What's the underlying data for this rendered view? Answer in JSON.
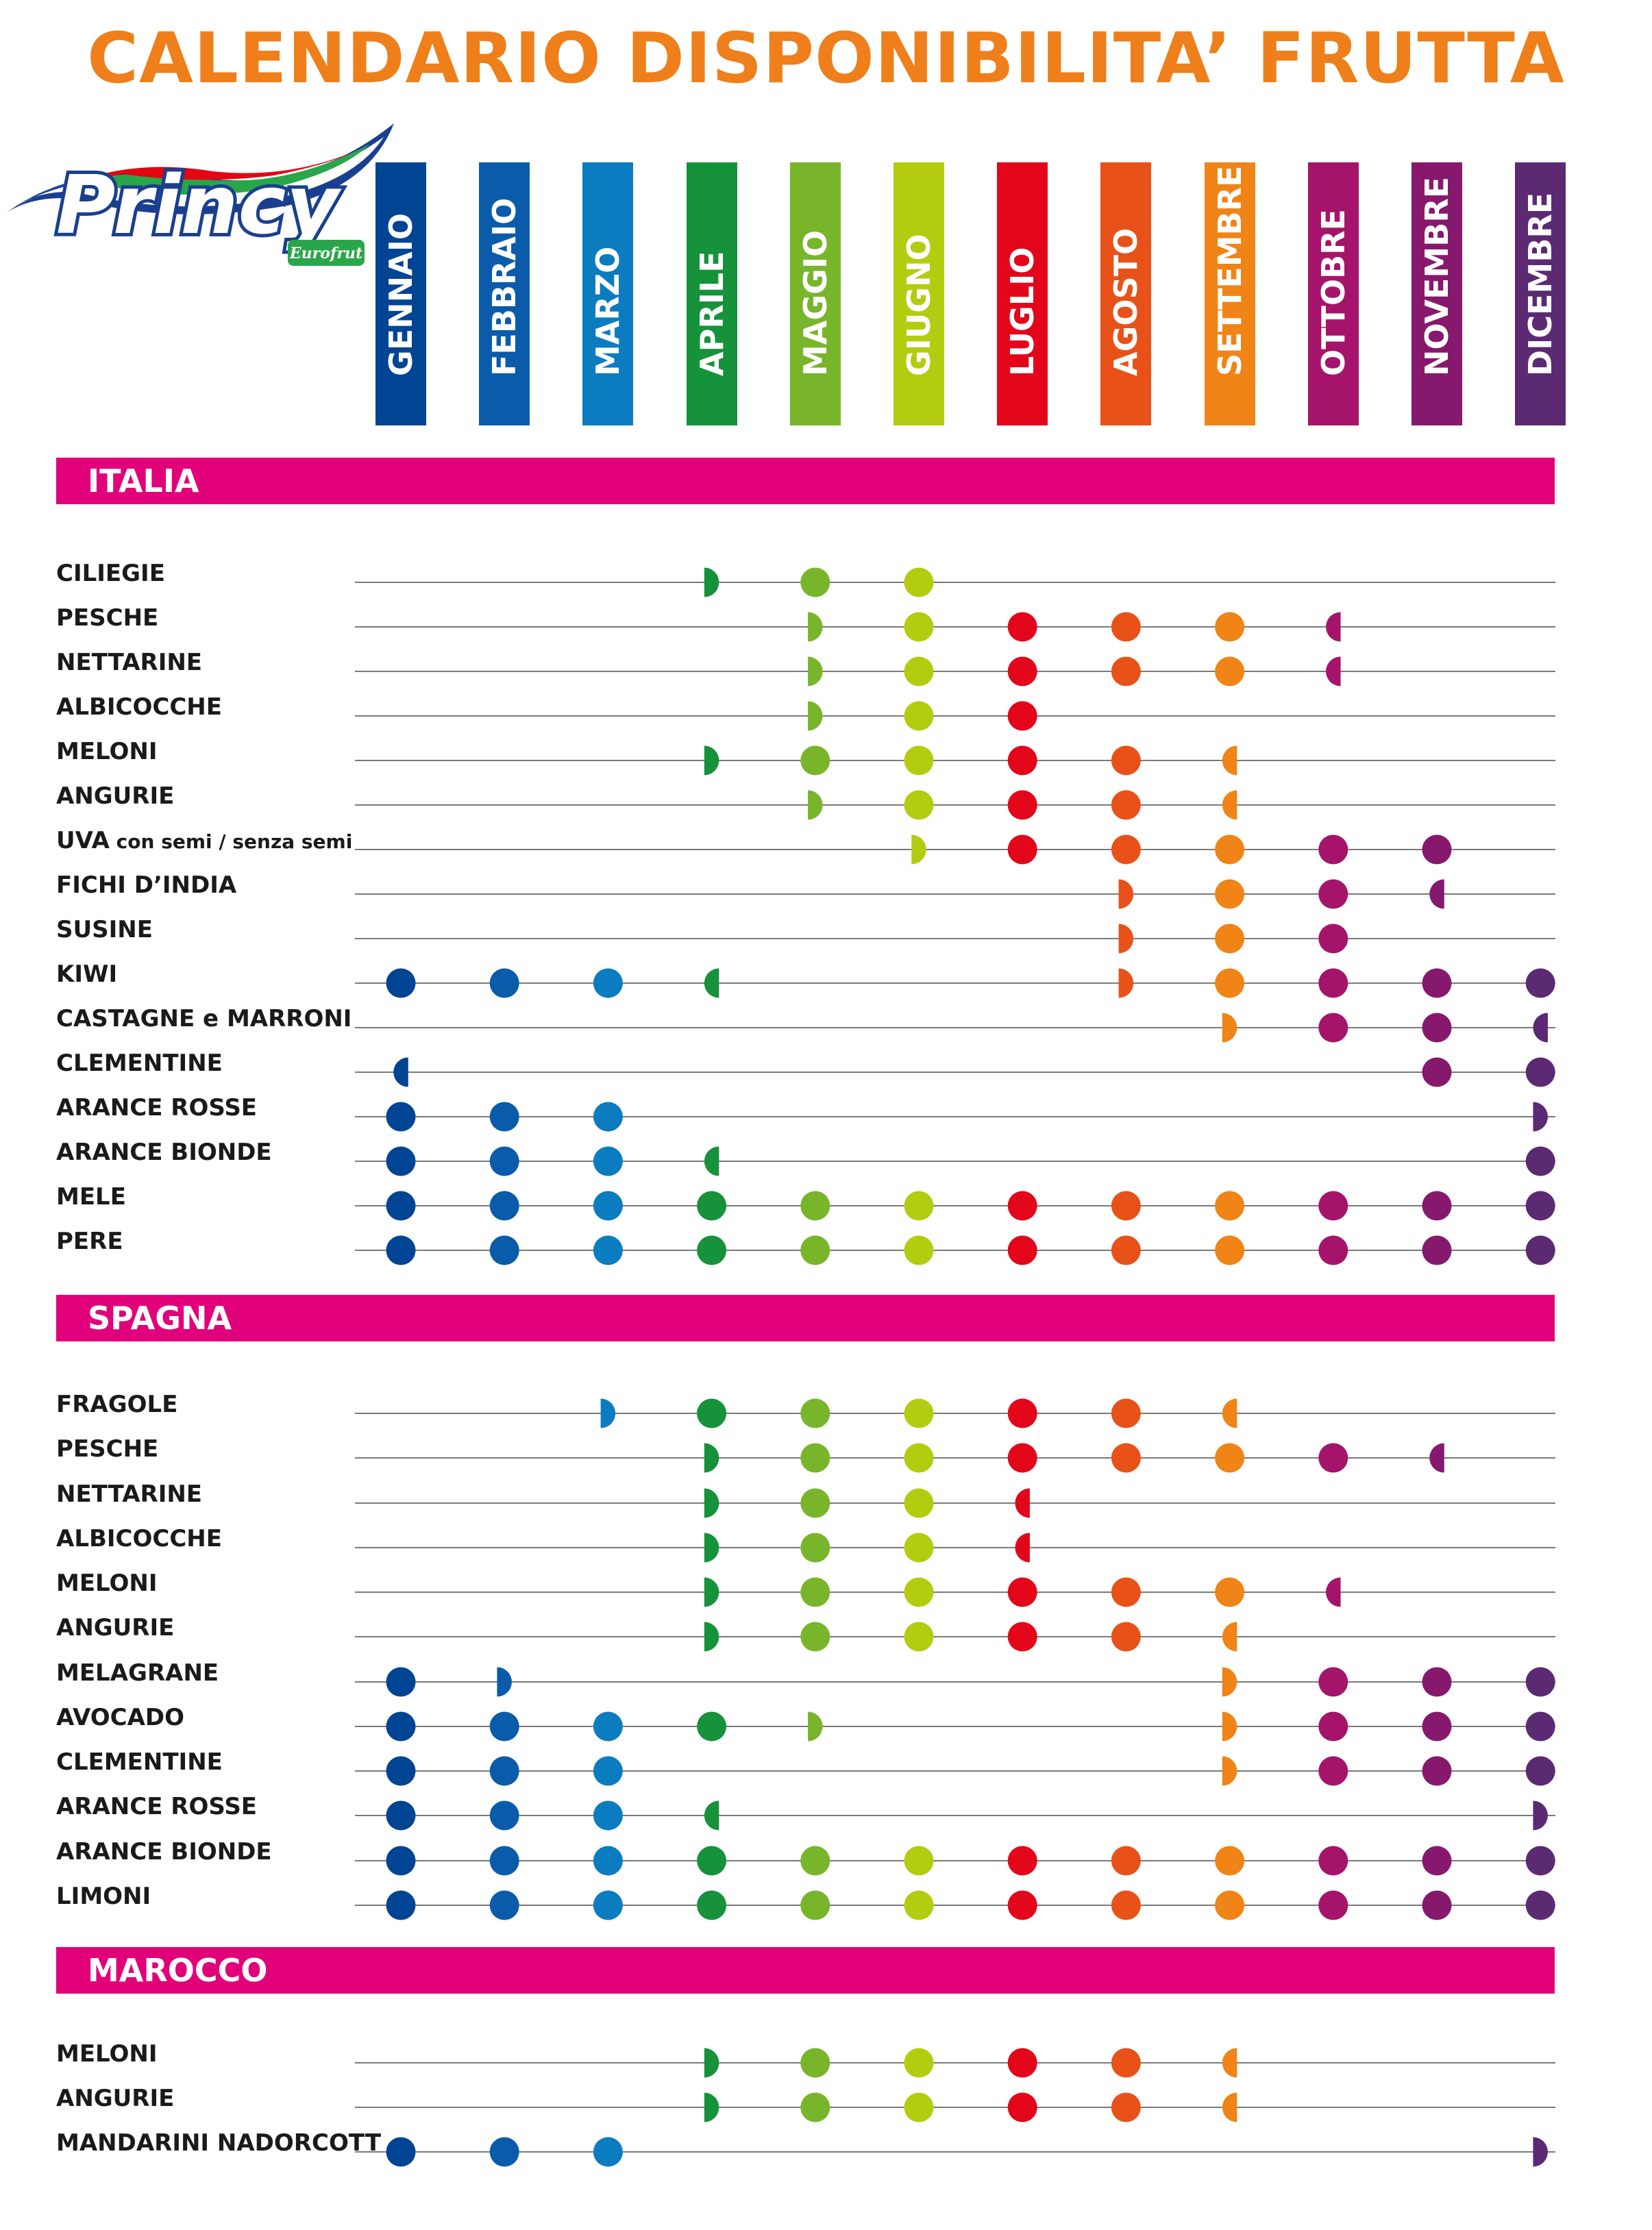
{
  "title": "CALENDARIO DISPONIBILITA’ FRUTTA",
  "logo": {
    "brand": "Princy",
    "sub_brand": "Eurofrut"
  },
  "months": [
    {
      "label": "GENNAIO",
      "color": "#004494"
    },
    {
      "label": "FEBBRAIO",
      "color": "#0a5cab"
    },
    {
      "label": "MARZO",
      "color": "#0b7cc0"
    },
    {
      "label": "APRILE",
      "color": "#16923a"
    },
    {
      "label": "MAGGIO",
      "color": "#78b52b"
    },
    {
      "label": "GIUGNO",
      "color": "#b4cc0f"
    },
    {
      "label": "LUGLIO",
      "color": "#e3061b"
    },
    {
      "label": "AGOSTO",
      "color": "#e85219"
    },
    {
      "label": "SETTEMBRE",
      "color": "#f08416"
    },
    {
      "label": "OTTOBRE",
      "color": "#a5146a"
    },
    {
      "label": "NOVEMBRE",
      "color": "#86196e"
    },
    {
      "label": "DICEMBRE",
      "color": "#5b2a73"
    }
  ],
  "legend_note": "F = full availability, R = right half (start of season), L = left half (end of season)",
  "sections": [
    {
      "name": "ITALIA",
      "rows": [
        {
          "label": "CILIEGIE",
          "marks": "...RFF......"
        },
        {
          "label": "PESCHE",
          "marks": "....RFFFFL.."
        },
        {
          "label": "NETTARINE",
          "marks": "....RFFFFL.."
        },
        {
          "label": "ALBICOCCHE",
          "marks": "....RFF....."
        },
        {
          "label": "MELONI",
          "marks": "...RFFFFL..."
        },
        {
          "label": "ANGURIE",
          "marks": "....RFFFL..."
        },
        {
          "label": "UVA",
          "note": "con semi / senza semi",
          "marks": ".....RFFFFF."
        },
        {
          "label": "FICHI D’INDIA",
          "marks": ".......RFFL."
        },
        {
          "label": "SUSINE",
          "marks": ".......RFF.."
        },
        {
          "label": "KIWI",
          "marks": "FFFL...RFFFF"
        },
        {
          "label": "CASTAGNE e MARRONI",
          "marks": "........RFFL"
        },
        {
          "label": "CLEMENTINE",
          "marks": "L.........FF"
        },
        {
          "label": "ARANCE ROSSE",
          "marks": "FFF........R"
        },
        {
          "label": "ARANCE BIONDE",
          "marks": "FFFL.......F"
        },
        {
          "label": "MELE",
          "marks": "FFFFFFFFFFFF"
        },
        {
          "label": "PERE",
          "marks": "FFFFFFFFFFFF"
        }
      ]
    },
    {
      "name": "SPAGNA",
      "rows": [
        {
          "label": "FRAGOLE",
          "marks": "..RFFFFFL..."
        },
        {
          "label": "PESCHE",
          "marks": "...RFFFFFFL."
        },
        {
          "label": "NETTARINE",
          "marks": "...RFFL....."
        },
        {
          "label": "ALBICOCCHE",
          "marks": "...RFFL....."
        },
        {
          "label": "MELONI",
          "marks": "...RFFFFFL.."
        },
        {
          "label": "ANGURIE",
          "marks": "...RFFFFL..."
        },
        {
          "label": "MELAGRANE",
          "marks": "FR......RFFF"
        },
        {
          "label": "AVOCADO",
          "marks": "FFFFR...RFFF"
        },
        {
          "label": "CLEMENTINE",
          "marks": "FFF.....RFFF"
        },
        {
          "label": "ARANCE ROSSE",
          "marks": "FFFL.......R"
        },
        {
          "label": "ARANCE BIONDE",
          "marks": "FFFFFFFFFFFF"
        },
        {
          "label": "LIMONI",
          "marks": "FFFFFFFFFFFF"
        }
      ]
    },
    {
      "name": "MAROCCO",
      "rows": [
        {
          "label": "MELONI",
          "marks": "...RFFFFL..."
        },
        {
          "label": "ANGURIE",
          "marks": "...RFFFFL..."
        },
        {
          "label": "MANDARINI NADORCOTT",
          "marks": "FFF........R"
        }
      ]
    }
  ]
}
